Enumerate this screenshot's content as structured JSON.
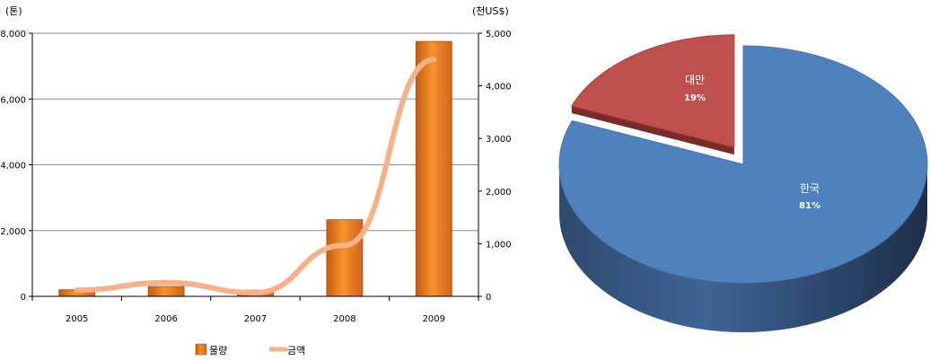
{
  "chart_data": [
    {
      "type": "bar",
      "categories": [
        "2005",
        "2006",
        "2007",
        "2008",
        "2009"
      ],
      "series": [
        {
          "name": "물량",
          "type": "bar",
          "axis": "left",
          "color": "#f07f1f",
          "values": [
            200,
            300,
            190,
            2330,
            7750
          ]
        },
        {
          "name": "금액",
          "type": "line",
          "axis": "right",
          "color": "#f8b08a",
          "values": [
            120,
            260,
            70,
            970,
            4500
          ]
        }
      ],
      "ylabel": "(톤)",
      "y2label": "(천US$)",
      "ylim": [
        0,
        8000
      ],
      "y2lim": [
        0,
        5000
      ],
      "yticks": [
        "0",
        "2,000",
        "4,000",
        "6,000",
        "8,000"
      ],
      "y2ticks": [
        "0",
        "1,000",
        "2,000",
        "3,000",
        "4,000",
        "5,000"
      ],
      "grid": true,
      "legend": "bottom"
    },
    {
      "type": "pie",
      "slices": [
        {
          "label": "대만",
          "value_label": "19%",
          "value": 19,
          "color": "#c0504d",
          "exploded": true
        },
        {
          "label": "한국",
          "value_label": "81%",
          "value": 81,
          "color": "#4f81bd",
          "exploded": false
        }
      ],
      "style": "3d"
    }
  ]
}
